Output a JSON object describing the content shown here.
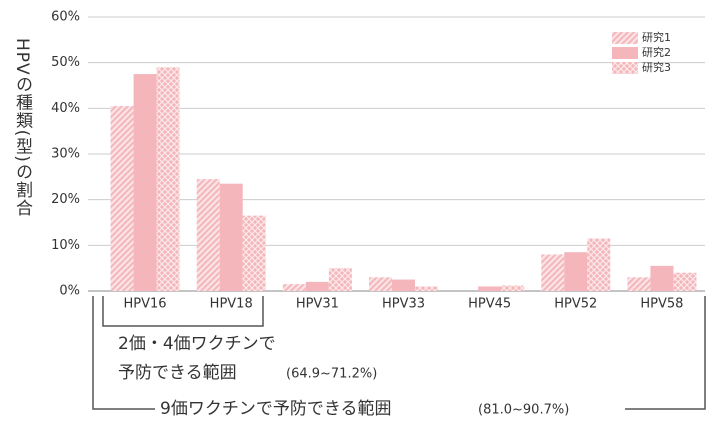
{
  "chart_data": {
    "type": "bar",
    "y_label": "HPVの種類(型)の割合",
    "categories": [
      "HPV16",
      "HPV18",
      "HPV31",
      "HPV33",
      "HPV45",
      "HPV52",
      "HPV58"
    ],
    "series": [
      {
        "name": "研究1",
        "color": "#f4b6bb",
        "pattern": "hatch",
        "values": [
          40.5,
          24.5,
          1.5,
          3,
          0,
          8,
          3
        ]
      },
      {
        "name": "研究2",
        "color": "#f4b6bb",
        "pattern": "solid",
        "values": [
          47.5,
          23.5,
          2,
          2.5,
          1,
          8.5,
          5.5
        ]
      },
      {
        "name": "研究3",
        "color": "#f4b6bb",
        "pattern": "crosshatch",
        "values": [
          49,
          16.5,
          5,
          1,
          1.2,
          11.5,
          4
        ]
      }
    ],
    "ylim": [
      0,
      60
    ],
    "yticks": [
      {
        "value": 0,
        "label": "0%"
      },
      {
        "value": 10,
        "label": "10%"
      },
      {
        "value": 20,
        "label": "20%"
      },
      {
        "value": 30,
        "label": "30%"
      },
      {
        "value": 40,
        "label": "40%"
      },
      {
        "value": 50,
        "label": "50%"
      },
      {
        "value": 60,
        "label": "60%"
      }
    ],
    "grid": true,
    "legend": "upper right",
    "annotations": [
      {
        "lines": [
          "2価・4価ワクチンで",
          "予防できる範囲"
        ],
        "range": "(64.9~71.2%)"
      },
      {
        "lines": [
          "9価ワクチンで予防できる範囲"
        ],
        "range": "(81.0~90.7%)"
      }
    ]
  }
}
